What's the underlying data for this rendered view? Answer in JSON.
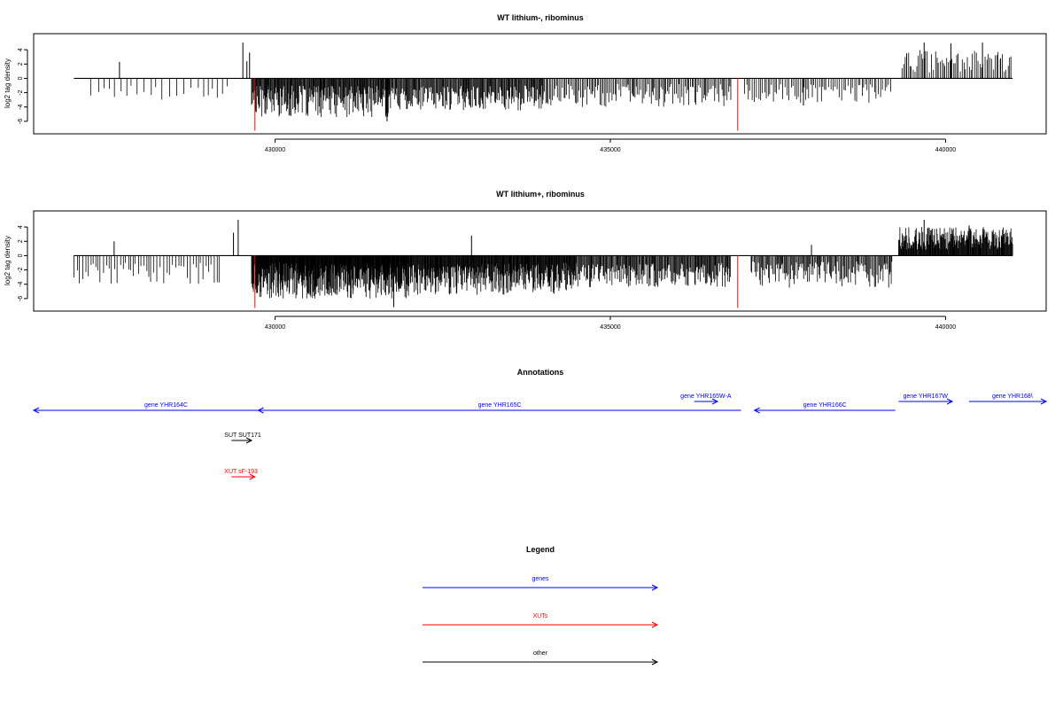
{
  "colors": {
    "genes": "#0000ff",
    "xuts": "#ff0000",
    "other": "#000000",
    "marker": "#ff0000"
  },
  "chart_data": [
    {
      "type": "bar",
      "title": "WT lithium-, ribominus",
      "ylabel": "log2 tag density",
      "xlim": [
        426400,
        441500
      ],
      "ylim": [
        -8,
        6
      ],
      "yticks": [
        -6,
        -4,
        -2,
        0,
        2,
        4
      ],
      "xticks": [
        430000,
        435000,
        440000
      ],
      "baseline_range": [
        427000,
        441000
      ],
      "red_markers": [
        {
          "x": 429700,
          "value": -7.3
        },
        {
          "x": 436900,
          "value": -7.3
        }
      ],
      "peaks": [
        {
          "x": 427680,
          "value": 2.3
        },
        {
          "x": 429520,
          "value": 5.0
        },
        {
          "x": 429620,
          "value": 3.6
        },
        {
          "x": 429580,
          "value": 2.4
        },
        {
          "x": 431670,
          "value": -6.0
        },
        {
          "x": 437880,
          "value": -3.8
        },
        {
          "x": 439420,
          "value": 3.5
        },
        {
          "x": 439680,
          "value": 5.0
        },
        {
          "x": 440080,
          "value": 4.9
        },
        {
          "x": 440550,
          "value": 5.0
        },
        {
          "x": 440820,
          "value": 2.8
        }
      ],
      "segments": [
        {
          "from": 427250,
          "to": 429300,
          "min": -3.0,
          "max": -0.8,
          "step": 95
        },
        {
          "from": 429650,
          "to": 431700,
          "min": -5.5,
          "max": -1.0,
          "step": 10
        },
        {
          "from": 431700,
          "to": 434000,
          "min": -4.5,
          "max": -1.0,
          "step": 12
        },
        {
          "from": 434000,
          "to": 436800,
          "min": -4.0,
          "max": -0.8,
          "step": 20
        },
        {
          "from": 437000,
          "to": 439200,
          "min": -3.5,
          "max": -0.8,
          "step": 30
        },
        {
          "from": 439350,
          "to": 441000,
          "min": 0.8,
          "max": 4.0,
          "step": 25
        }
      ]
    },
    {
      "type": "bar",
      "title": "WT lithium+, ribominus",
      "ylabel": "log2 tag density",
      "xlim": [
        426400,
        441500
      ],
      "ylim": [
        -8,
        6
      ],
      "yticks": [
        -6,
        -4,
        -2,
        0,
        2,
        4
      ],
      "xticks": [
        430000,
        435000,
        440000
      ],
      "baseline_range": [
        427000,
        441000
      ],
      "red_markers": [
        {
          "x": 429700,
          "value": -7.3
        },
        {
          "x": 436900,
          "value": -7.3
        }
      ],
      "peaks": [
        {
          "x": 427600,
          "value": 2.0
        },
        {
          "x": 429450,
          "value": 5.0
        },
        {
          "x": 429380,
          "value": 3.2
        },
        {
          "x": 431770,
          "value": -7.2
        },
        {
          "x": 432930,
          "value": 2.8
        },
        {
          "x": 438000,
          "value": 1.5
        },
        {
          "x": 439680,
          "value": 5.0
        },
        {
          "x": 440350,
          "value": 4.2
        },
        {
          "x": 440850,
          "value": 3.6
        }
      ],
      "segments": [
        {
          "from": 427000,
          "to": 429200,
          "min": -4.0,
          "max": -1.0,
          "step": 40
        },
        {
          "from": 429650,
          "to": 432000,
          "min": -6.0,
          "max": -1.0,
          "step": 6
        },
        {
          "from": 432000,
          "to": 434500,
          "min": -5.5,
          "max": -1.0,
          "step": 8
        },
        {
          "from": 434500,
          "to": 436800,
          "min": -4.5,
          "max": -1.0,
          "step": 12
        },
        {
          "from": 437100,
          "to": 439200,
          "min": -4.5,
          "max": -0.8,
          "step": 15
        },
        {
          "from": 439300,
          "to": 441000,
          "min": 0.8,
          "max": 4.0,
          "step": 8
        }
      ]
    }
  ],
  "annotations": {
    "title": "Annotations",
    "features": [
      {
        "label": "gene YHR164C",
        "kind": "genes",
        "start": 426400,
        "end": 430350,
        "strand": "-",
        "row": 0
      },
      {
        "label": "gene YHR165C",
        "kind": "genes",
        "start": 429750,
        "end": 436950,
        "strand": "-",
        "row": 0
      },
      {
        "label": "gene YHR165W-A",
        "kind": "genes",
        "start": 436250,
        "end": 436600,
        "strand": "+",
        "row": 1
      },
      {
        "label": "gene YHR166C",
        "kind": "genes",
        "start": 437150,
        "end": 439250,
        "strand": "-",
        "row": 0
      },
      {
        "label": "gene YHR167W",
        "kind": "genes",
        "start": 439300,
        "end": 440100,
        "strand": "+",
        "row": 1
      },
      {
        "label": "gene YHR168W",
        "kind": "genes",
        "start": 440350,
        "end": 441500,
        "strand": "+",
        "row": 1
      },
      {
        "label": "SUT SUT171",
        "kind": "other",
        "start": 429350,
        "end": 429650,
        "strand": "+",
        "row": 2
      },
      {
        "label": "XUT sF-193",
        "kind": "xuts",
        "start": 429350,
        "end": 429700,
        "strand": "+",
        "row": 3
      }
    ],
    "visible_labels": {
      "gene YHR168W": "gene YHR168\\"
    }
  },
  "legend": {
    "title": "Legend",
    "items": [
      {
        "label": "genes",
        "kind": "genes"
      },
      {
        "label": "XUTs",
        "kind": "xuts"
      },
      {
        "label": "other",
        "kind": "other"
      }
    ]
  }
}
